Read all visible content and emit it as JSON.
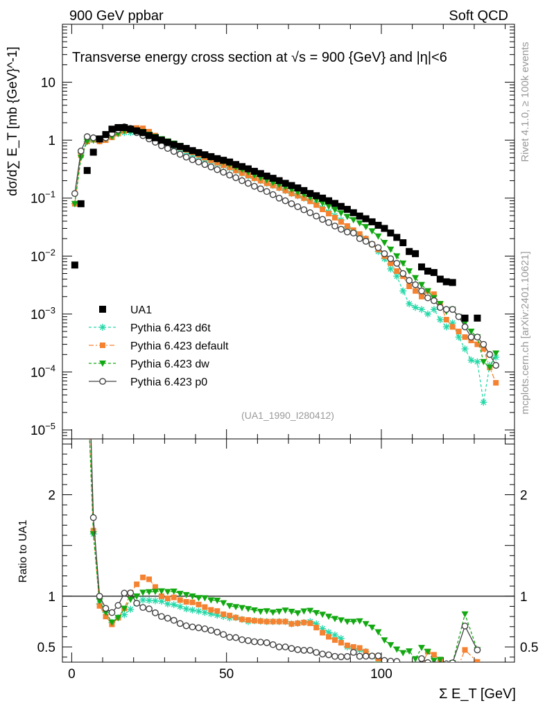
{
  "header": {
    "left": "900 GeV ppbar",
    "right": "Soft QCD"
  },
  "side_labels": {
    "rivet": "Rivet 4.1.0, ≥ 100k events",
    "site": "mcplots.cern.ch [arXiv:2401.10621]"
  },
  "chart_data": {
    "type": "scatter",
    "title": "Transverse energy cross section at √s = 900 {GeV} and |η|<6",
    "analysis_tag": "(UA1_1990_I280412)",
    "xlabel": "Σ E_T [GeV]",
    "xlim": [
      -3,
      143
    ],
    "x_ticks": [
      0,
      50,
      100
    ],
    "main": {
      "ylabel": "dσ/d∑ E_T [mb {GeV}^-1]",
      "yscale": "log",
      "ylim": [
        7e-06,
        100
      ],
      "y_ticks": [
        {
          "value": 10,
          "label": "10"
        },
        {
          "value": 1,
          "label": "1"
        },
        {
          "value": 0.1,
          "label": "10^-1"
        },
        {
          "value": 0.01,
          "label": "10^-2"
        },
        {
          "value": 0.001,
          "label": "10^-3"
        },
        {
          "value": 0.0001,
          "label": "10^-4"
        },
        {
          "value": 1e-05,
          "label": "10^-5"
        }
      ],
      "legend_position": "bottom-left",
      "series": [
        {
          "name": "UA1",
          "style": "data",
          "color": "#000000",
          "x": [
            1,
            3,
            5,
            7,
            9,
            11,
            13,
            15,
            17,
            19,
            21,
            23,
            25,
            27,
            29,
            31,
            33,
            35,
            37,
            39,
            41,
            43,
            45,
            47,
            49,
            51,
            53,
            55,
            57,
            59,
            61,
            63,
            65,
            67,
            69,
            71,
            73,
            75,
            77,
            79,
            81,
            83,
            85,
            87,
            89,
            91,
            93,
            95,
            97,
            99,
            101,
            103,
            105,
            107,
            109,
            111,
            113,
            115,
            117,
            119,
            121,
            123,
            127,
            131
          ],
          "y": [
            0.007,
            0.08,
            0.3,
            0.62,
            1.05,
            1.25,
            1.55,
            1.65,
            1.65,
            1.55,
            1.45,
            1.35,
            1.2,
            1.1,
            1.0,
            0.92,
            0.84,
            0.78,
            0.72,
            0.66,
            0.61,
            0.56,
            0.52,
            0.48,
            0.45,
            0.42,
            0.38,
            0.35,
            0.32,
            0.29,
            0.265,
            0.24,
            0.22,
            0.2,
            0.18,
            0.165,
            0.15,
            0.135,
            0.12,
            0.11,
            0.1,
            0.09,
            0.081,
            0.072,
            0.064,
            0.056,
            0.049,
            0.044,
            0.039,
            0.034,
            0.03,
            0.025,
            0.021,
            0.017,
            0.012,
            0.011,
            0.0065,
            0.0055,
            0.0052,
            0.004,
            0.0036,
            0.0035,
            0.00085,
            0.00085
          ]
        },
        {
          "name": "Pythia 6.423 d6t",
          "style": "star",
          "color": "#22d8a8",
          "dash": "4,3",
          "x": [
            1,
            3,
            5,
            7,
            9,
            11,
            13,
            15,
            17,
            19,
            21,
            23,
            25,
            27,
            29,
            31,
            33,
            35,
            37,
            39,
            41,
            43,
            45,
            47,
            49,
            51,
            53,
            55,
            57,
            59,
            61,
            63,
            65,
            67,
            69,
            71,
            73,
            75,
            77,
            79,
            81,
            83,
            85,
            87,
            89,
            91,
            93,
            95,
            97,
            99,
            101,
            103,
            105,
            107,
            109,
            111,
            113,
            115,
            117,
            119,
            121,
            123,
            125,
            127,
            129,
            131,
            133,
            135,
            137
          ],
          "y": [
            0.08,
            0.6,
            0.95,
            1.0,
            0.97,
            1.05,
            1.15,
            1.3,
            1.35,
            1.35,
            1.35,
            1.3,
            1.15,
            1.05,
            0.95,
            0.85,
            0.77,
            0.7,
            0.63,
            0.57,
            0.52,
            0.47,
            0.43,
            0.39,
            0.36,
            0.33,
            0.3,
            0.27,
            0.24,
            0.22,
            0.2,
            0.18,
            0.165,
            0.15,
            0.135,
            0.12,
            0.11,
            0.1,
            0.09,
            0.08,
            0.068,
            0.058,
            0.05,
            0.042,
            0.032,
            0.027,
            0.023,
            0.02,
            0.016,
            0.012,
            0.009,
            0.006,
            0.0045,
            0.0025,
            0.0015,
            0.0013,
            0.0012,
            0.001,
            0.0012,
            0.0008,
            0.0006,
            0.0007,
            0.0004,
            0.00025,
            0.00016,
            0.00015,
            3e-05,
            0.00013,
            0.00018
          ]
        },
        {
          "name": "Pythia 6.423 default",
          "style": "square",
          "color": "#f58230",
          "dash": "7,3,2,3",
          "x": [
            1,
            3,
            5,
            7,
            9,
            11,
            13,
            15,
            17,
            19,
            21,
            23,
            25,
            27,
            29,
            31,
            33,
            35,
            37,
            39,
            41,
            43,
            45,
            47,
            49,
            51,
            53,
            55,
            57,
            59,
            61,
            63,
            65,
            67,
            69,
            71,
            73,
            75,
            77,
            79,
            81,
            83,
            85,
            87,
            89,
            91,
            93,
            95,
            97,
            99,
            101,
            103,
            105,
            107,
            109,
            111,
            113,
            115,
            117,
            119,
            121,
            123,
            125,
            127,
            129,
            131,
            133,
            135,
            137
          ],
          "y": [
            0.08,
            0.55,
            0.95,
            1.02,
            0.95,
            1.0,
            1.12,
            1.3,
            1.45,
            1.6,
            1.62,
            1.6,
            1.4,
            1.2,
            1.0,
            0.9,
            0.83,
            0.75,
            0.68,
            0.62,
            0.56,
            0.5,
            0.45,
            0.41,
            0.37,
            0.34,
            0.3,
            0.27,
            0.245,
            0.22,
            0.2,
            0.18,
            0.165,
            0.15,
            0.135,
            0.12,
            0.11,
            0.1,
            0.088,
            0.076,
            0.064,
            0.054,
            0.046,
            0.039,
            0.033,
            0.028,
            0.024,
            0.02,
            0.016,
            0.013,
            0.01,
            0.0075,
            0.0055,
            0.0045,
            0.003,
            0.0025,
            0.002,
            0.0025,
            0.0022,
            0.0015,
            0.0008,
            0.0006,
            0.0005,
            0.0004,
            0.00035,
            0.0003,
            0.00025,
            0.00012,
            6.5e-05
          ]
        },
        {
          "name": "Pythia 6.423 dw",
          "style": "triangle",
          "color": "#12a812",
          "dash": "4,3",
          "x": [
            1,
            3,
            5,
            7,
            9,
            11,
            13,
            15,
            17,
            19,
            21,
            23,
            25,
            27,
            29,
            31,
            33,
            35,
            37,
            39,
            41,
            43,
            45,
            47,
            49,
            51,
            53,
            55,
            57,
            59,
            61,
            63,
            65,
            67,
            69,
            71,
            73,
            75,
            77,
            79,
            81,
            83,
            85,
            87,
            89,
            91,
            93,
            95,
            97,
            99,
            101,
            103,
            105,
            107,
            109,
            111,
            113,
            115,
            117,
            119,
            121,
            123,
            125,
            127,
            129,
            131,
            133,
            135,
            137
          ],
          "y": [
            0.08,
            0.5,
            0.95,
            1.0,
            1.0,
            1.05,
            1.15,
            1.3,
            1.45,
            1.5,
            1.45,
            1.4,
            1.25,
            1.15,
            1.05,
            0.96,
            0.88,
            0.8,
            0.73,
            0.66,
            0.6,
            0.55,
            0.5,
            0.46,
            0.42,
            0.38,
            0.34,
            0.31,
            0.28,
            0.25,
            0.225,
            0.205,
            0.185,
            0.17,
            0.155,
            0.14,
            0.125,
            0.115,
            0.103,
            0.092,
            0.082,
            0.072,
            0.063,
            0.055,
            0.048,
            0.042,
            0.037,
            0.032,
            0.027,
            0.022,
            0.017,
            0.013,
            0.01,
            0.0075,
            0.0055,
            0.0042,
            0.0032,
            0.0025,
            0.0019,
            0.0015,
            0.0011,
            0.0012,
            0.0009,
            0.0007,
            0.0005,
            0.0004,
            0.00015,
            0.00012,
            0.00021
          ]
        },
        {
          "name": "Pythia 6.423 p0",
          "style": "circle",
          "color": "#404040",
          "dash": "",
          "x": [
            1,
            3,
            5,
            7,
            9,
            11,
            13,
            15,
            17,
            19,
            21,
            23,
            25,
            27,
            29,
            31,
            33,
            35,
            37,
            39,
            41,
            43,
            45,
            47,
            49,
            51,
            53,
            55,
            57,
            59,
            61,
            63,
            65,
            67,
            69,
            71,
            73,
            75,
            77,
            79,
            81,
            83,
            85,
            87,
            89,
            91,
            93,
            95,
            97,
            99,
            101,
            103,
            105,
            107,
            109,
            111,
            113,
            115,
            117,
            119,
            121,
            123,
            125,
            127,
            129,
            131,
            133,
            135,
            137
          ],
          "y": [
            0.12,
            0.65,
            1.15,
            1.1,
            1.05,
            1.1,
            1.3,
            1.5,
            1.7,
            1.6,
            1.35,
            1.2,
            1.05,
            0.92,
            0.8,
            0.72,
            0.64,
            0.57,
            0.51,
            0.46,
            0.42,
            0.38,
            0.345,
            0.31,
            0.28,
            0.25,
            0.225,
            0.2,
            0.18,
            0.16,
            0.145,
            0.13,
            0.115,
            0.1,
            0.09,
            0.08,
            0.071,
            0.063,
            0.056,
            0.049,
            0.043,
            0.038,
            0.033,
            0.029,
            0.026,
            0.025,
            0.02,
            0.018,
            0.016,
            0.014,
            0.011,
            0.009,
            0.0075,
            0.005,
            0.0038,
            0.0032,
            0.0025,
            0.0019,
            0.0017,
            0.0013,
            0.0012,
            0.0012,
            0.0009,
            0.0006,
            0.0004,
            0.0004,
            0.0003,
            0.0002,
            0.00013
          ]
        }
      ]
    },
    "ratio": {
      "ylabel": "Ratio to UA1",
      "ylim": [
        0.35,
        2.55
      ],
      "y_ticks": [
        {
          "value": 0.5,
          "label": "0.5"
        },
        {
          "value": 1,
          "label": "1"
        },
        {
          "value": 2,
          "label": "2"
        }
      ],
      "reference_line": 1
    }
  }
}
